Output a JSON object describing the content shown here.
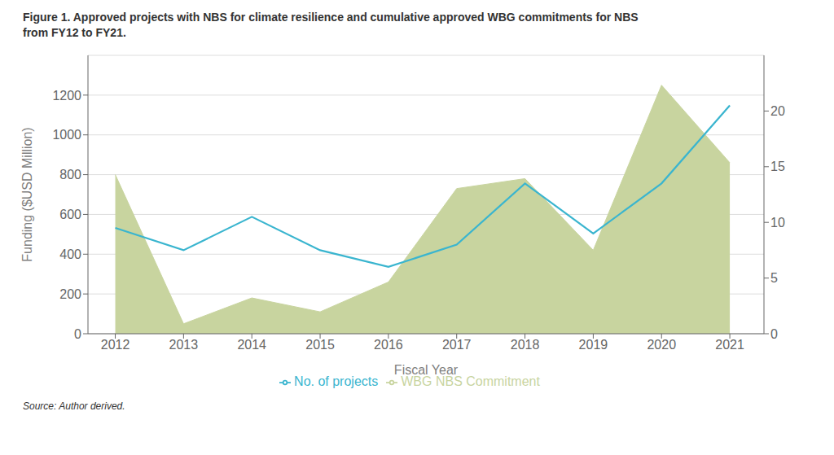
{
  "chart_data": {
    "type": "line",
    "title": "Figure 1. Approved projects with NBS for climate resilience and cumulative approved WBG commitments for NBS\nfrom FY12 to FY21.",
    "x_label": "Fiscal Year",
    "y_label": "Funding ($USD Million)",
    "x": [
      2012,
      2013,
      2014,
      2015,
      2016,
      2017,
      2018,
      2019,
      2020,
      2021
    ],
    "xlim": [
      2011.6,
      2021.5
    ],
    "xticks": [
      2012,
      2013,
      2014,
      2015,
      2016,
      2017,
      2018,
      2019,
      2020,
      2021
    ],
    "ylim": [
      0,
      1400
    ],
    "yticks": [
      0,
      200,
      400,
      600,
      800,
      1000,
      1200
    ],
    "y2lim": [
      0,
      25
    ],
    "y2ticks": [
      0,
      5,
      10,
      15,
      20
    ],
    "series": [
      {
        "name": "WBG NBS Commitment",
        "type": "area",
        "color": "#c8d49f",
        "values": [
          800,
          50,
          180,
          110,
          260,
          730,
          780,
          420,
          1250,
          860
        ]
      },
      {
        "name": "No. of projects",
        "color": "#3ab5cf",
        "axis": "y2",
        "values": [
          9.5,
          7.5,
          10.5,
          7.5,
          6.0,
          8.0,
          13.5,
          9.0,
          13.5,
          20.5
        ]
      }
    ],
    "grid": true,
    "legend": "bottom",
    "annotations": [
      "Source: Author derived."
    ]
  }
}
